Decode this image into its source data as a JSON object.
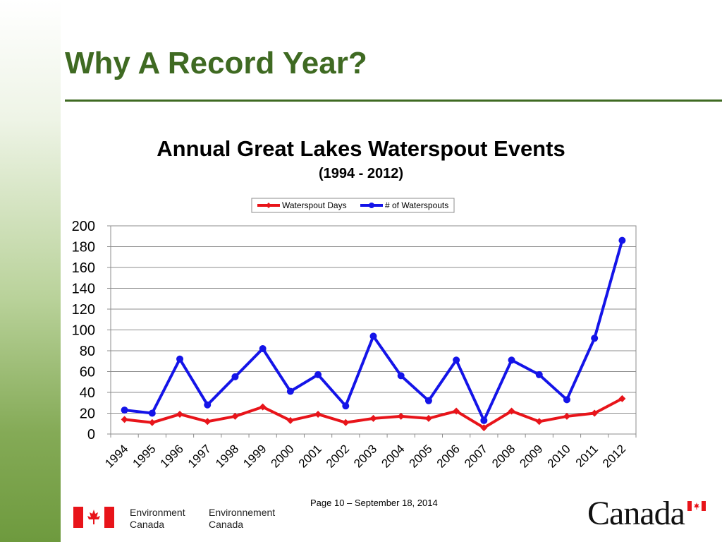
{
  "slide": {
    "title": "Why A Record Year?",
    "footer": "Page 10 – September 18, 2014",
    "dept_en_line1": "Environment",
    "dept_en_line2": "Canada",
    "dept_fr_line1": "Environnement",
    "dept_fr_line2": "Canada",
    "wordmark": "Canada",
    "accent_color": "#3f6a22"
  },
  "chart_data": {
    "type": "line",
    "title": "Annual Great Lakes Waterspout Events",
    "subtitle": "(1994 - 2012)",
    "xlabel": "",
    "ylabel": "",
    "ylim": [
      0,
      200
    ],
    "yticks": [
      0,
      20,
      40,
      60,
      80,
      100,
      120,
      140,
      160,
      180,
      200
    ],
    "grid": true,
    "legend_position": "top",
    "categories": [
      "1994",
      "1995",
      "1996",
      "1997",
      "1998",
      "1999",
      "2000",
      "2001",
      "2002",
      "2003",
      "2004",
      "2005",
      "2006",
      "2007",
      "2008",
      "2009",
      "2010",
      "2011",
      "2012"
    ],
    "series": [
      {
        "name": "Waterspout Days",
        "color": "#e8141a",
        "marker": "diamond",
        "values": [
          14,
          11,
          19,
          12,
          17,
          26,
          13,
          19,
          11,
          15,
          17,
          15,
          22,
          6,
          22,
          12,
          17,
          20,
          34
        ]
      },
      {
        "name": "# of Waterspouts",
        "color": "#1414e8",
        "marker": "circle",
        "values": [
          23,
          20,
          72,
          28,
          55,
          82,
          41,
          57,
          27,
          94,
          56,
          32,
          71,
          13,
          71,
          57,
          33,
          92,
          186
        ]
      }
    ]
  }
}
